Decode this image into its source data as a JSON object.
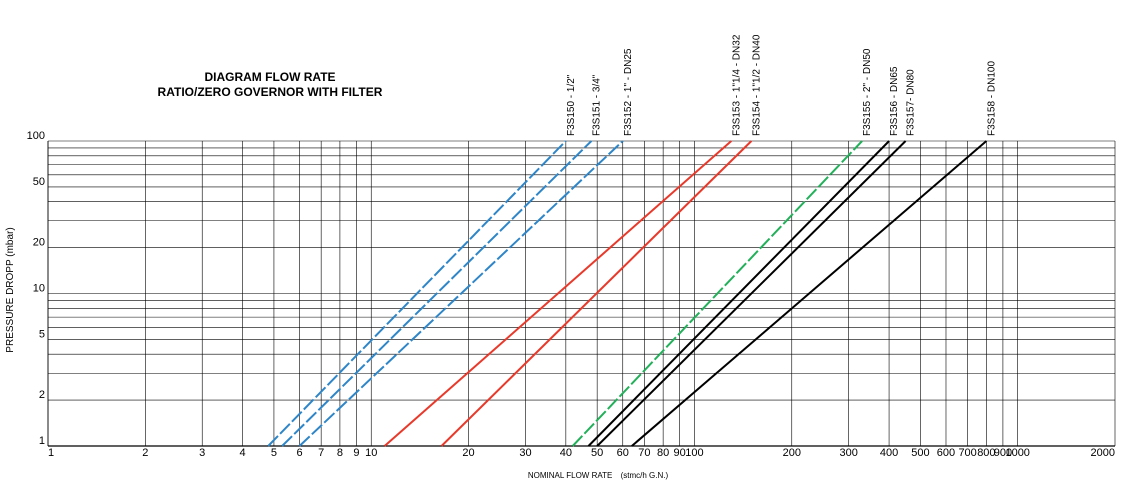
{
  "chart_data": {
    "type": "line",
    "title": "DIAGRAM FLOW RATE",
    "subtitle": "RATIO/ZERO GOVERNOR WITH FILTER",
    "xlabel": "NOMINAL FLOW RATE",
    "xlabel_unit": "(stmc/h G.N.)",
    "ylabel": "PRESSURE DROPP (mbar)",
    "x_scale": "log",
    "y_scale": "log",
    "xlim": [
      1,
      2000
    ],
    "ylim": [
      1,
      100
    ],
    "grid": true,
    "x_ticks": [
      {
        "v": 1,
        "label": "1"
      },
      {
        "v": 2,
        "label": "2"
      },
      {
        "v": 3,
        "label": "3"
      },
      {
        "v": 4,
        "label": "4"
      },
      {
        "v": 5,
        "label": "5"
      },
      {
        "v": 6,
        "label": "6"
      },
      {
        "v": 7,
        "label": "7"
      },
      {
        "v": 8,
        "label": "8"
      },
      {
        "v": 9,
        "label": "9"
      },
      {
        "v": 10,
        "label": "10"
      },
      {
        "v": 20,
        "label": "20"
      },
      {
        "v": 30,
        "label": "30"
      },
      {
        "v": 40,
        "label": "40"
      },
      {
        "v": 50,
        "label": "50"
      },
      {
        "v": 60,
        "label": "60"
      },
      {
        "v": 70,
        "label": "70"
      },
      {
        "v": 80,
        "label": "80"
      },
      {
        "v": 90,
        "label": "90"
      },
      {
        "v": 100,
        "label": "100"
      },
      {
        "v": 200,
        "label": "200"
      },
      {
        "v": 300,
        "label": "300"
      },
      {
        "v": 400,
        "label": "400"
      },
      {
        "v": 500,
        "label": "500"
      },
      {
        "v": 600,
        "label": "600"
      },
      {
        "v": 700,
        "label": "700"
      },
      {
        "v": 800,
        "label": "800"
      },
      {
        "v": 900,
        "label": "900"
      },
      {
        "v": 1000,
        "label": "1000"
      },
      {
        "v": 2000,
        "label": "2000"
      }
    ],
    "y_ticks": [
      {
        "v": 1,
        "label": "1"
      },
      {
        "v": 2,
        "label": "2"
      },
      {
        "v": 5,
        "label": "5"
      },
      {
        "v": 10,
        "label": "10"
      },
      {
        "v": 20,
        "label": "20"
      },
      {
        "v": 50,
        "label": "50"
      },
      {
        "v": 100,
        "label": "100"
      }
    ],
    "y_gridlines": [
      1,
      2,
      3,
      4,
      5,
      6,
      7,
      8,
      9,
      10,
      20,
      30,
      40,
      50,
      60,
      70,
      80,
      90,
      100
    ],
    "series": [
      {
        "name": "F3S150 - 1/2\"",
        "color": "#2e86c8",
        "dashed": true,
        "x": [
          4.8,
          40
        ],
        "y": [
          1,
          100
        ]
      },
      {
        "name": "F3S151 - 3/4\"",
        "color": "#2e86c8",
        "dashed": true,
        "x": [
          5.3,
          48
        ],
        "y": [
          1,
          100
        ]
      },
      {
        "name": "F3S152 - 1\" - DN25",
        "color": "#2e86c8",
        "dashed": true,
        "x": [
          6,
          60
        ],
        "y": [
          1,
          100
        ]
      },
      {
        "name": "F3S153 - 1\"1/4 - DN32",
        "color": "#e8392a",
        "dashed": false,
        "x": [
          11,
          130
        ],
        "y": [
          1,
          100
        ]
      },
      {
        "name": "F3S154 - 1\"1/2 - DN40",
        "color": "#e8392a",
        "dashed": false,
        "x": [
          16.5,
          150
        ],
        "y": [
          1,
          100
        ]
      },
      {
        "name": "F3S155 - 2\" - DN50",
        "color": "#22b05a",
        "dashed": true,
        "x": [
          42,
          330
        ],
        "y": [
          1,
          100
        ]
      },
      {
        "name": "F3S156 - DN65",
        "color": "#000000",
        "dashed": false,
        "x": [
          47,
          400
        ],
        "y": [
          1,
          100
        ]
      },
      {
        "name": "F3S157- DN80",
        "color": "#000000",
        "dashed": false,
        "x": [
          50,
          450
        ],
        "y": [
          1,
          100
        ]
      },
      {
        "name": "F3S158 - DN100",
        "color": "#000000",
        "dashed": false,
        "x": [
          64,
          800
        ],
        "y": [
          1,
          100
        ]
      }
    ]
  }
}
